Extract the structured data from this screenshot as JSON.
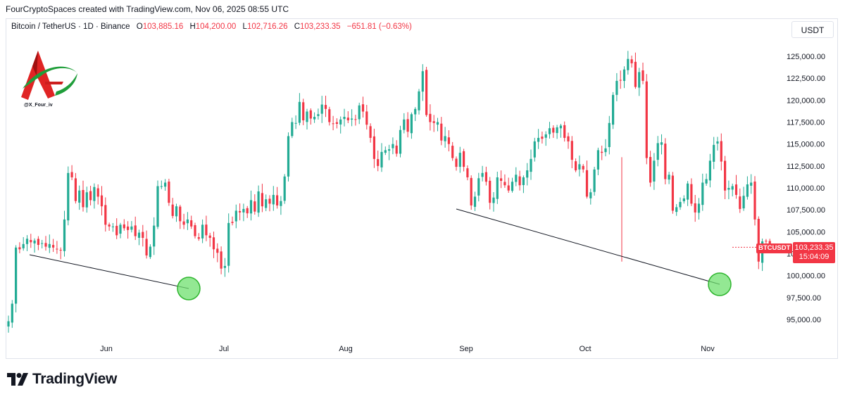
{
  "caption": "FourCryptoSpaces created with TradingView.com, Nov 06, 2025 08:55 UTC",
  "legend": {
    "symbol": "Bitcoin / TetherUS · 1D · Binance",
    "open_label": "O",
    "open_value": "103,885.16",
    "high_label": "H",
    "high_value": "104,200.00",
    "low_label": "L",
    "low_value": "102,716.26",
    "close_label": "C",
    "close_value": "103,233.35",
    "change": "−651.81 (−0.63%)"
  },
  "currency": "USDT",
  "logo_handle": "@X_Four_iv",
  "price_tag": {
    "symbol": "BTCUSDT",
    "price": "103,233.35",
    "countdown": "15:04:09"
  },
  "brand": "TradingView",
  "colors": {
    "up": "#22ab94",
    "down": "#f23645",
    "circle": "#6fe06f"
  },
  "chart_data": {
    "type": "candlestick",
    "y_ticks": [
      "125,000.00",
      "122,500.00",
      "120,000.00",
      "117,500.00",
      "115,000.00",
      "112,500.00",
      "110,000.00",
      "107,500.00",
      "105,000.00",
      "102,500.00",
      "100,000.00",
      "97,500.00",
      "95,000.00"
    ],
    "x_ticks": [
      "Jun",
      "Jul",
      "Aug",
      "Sep",
      "Oct",
      "Nov"
    ],
    "start_date": "2025-05-06",
    "last_candle": {
      "open": 103885.16,
      "high": 104200.0,
      "low": 102716.26,
      "close": 103233.35
    },
    "close_series": [
      94800,
      96800,
      103200,
      103000,
      103600,
      104200,
      103800,
      104000,
      103500,
      103700,
      103300,
      103600,
      103200,
      103000,
      102900,
      106400,
      111700,
      111200,
      108500,
      109700,
      107800,
      109500,
      108600,
      110100,
      109000,
      107900,
      105800,
      105600,
      105600,
      104600,
      105800,
      105400,
      105200,
      105600,
      104500,
      104900,
      104300,
      102300,
      103300,
      105700,
      110200,
      110200,
      110600,
      108300,
      106800,
      107900,
      106200,
      105800,
      106400,
      105600,
      104500,
      104200,
      105800,
      104600,
      104300,
      103000,
      102600,
      100800,
      101100,
      106000,
      106000,
      107400,
      107200,
      107600,
      107100,
      108600,
      107300,
      109600,
      107900,
      108700,
      108200,
      109200,
      108000,
      108500,
      111300,
      115900,
      117500,
      117400,
      119800,
      117700,
      118700,
      117900,
      118100,
      118400,
      119500,
      119000,
      117500,
      117300,
      117300,
      117800,
      118100,
      117700,
      117900,
      117800,
      119400,
      118700,
      117200,
      115700,
      113300,
      112500,
      114100,
      114300,
      114400,
      115000,
      113900,
      116600,
      117800,
      116400,
      118400,
      119000,
      121000,
      123300,
      118300,
      117500,
      117400,
      117500,
      115400,
      115900,
      115000,
      113400,
      112400,
      114000,
      112400,
      111200,
      108000,
      109000,
      111100,
      111700,
      110700,
      108300,
      108900,
      111200,
      110800,
      110300,
      109700,
      110700,
      111500,
      110300,
      111200,
      112000,
      113300,
      115300,
      115700,
      115600,
      116100,
      116800,
      116300,
      116900,
      117100,
      115700,
      115300,
      113200,
      112000,
      112700,
      112100,
      109000,
      109500,
      112100,
      114300,
      114000,
      114500,
      117400,
      120600,
      122200,
      122300,
      123500,
      124700,
      124200,
      121500,
      123200,
      122200,
      113400,
      110600,
      113100,
      115100,
      115200,
      111000,
      111500,
      107400,
      107800,
      108400,
      108800,
      110500,
      108200,
      107200,
      108200,
      110600,
      111000,
      113100,
      114900,
      115300,
      113000,
      109700,
      110000,
      110200,
      109200,
      107600,
      109100,
      110400,
      110600,
      106400,
      101600,
      103900,
      103900,
      103233
    ]
  }
}
